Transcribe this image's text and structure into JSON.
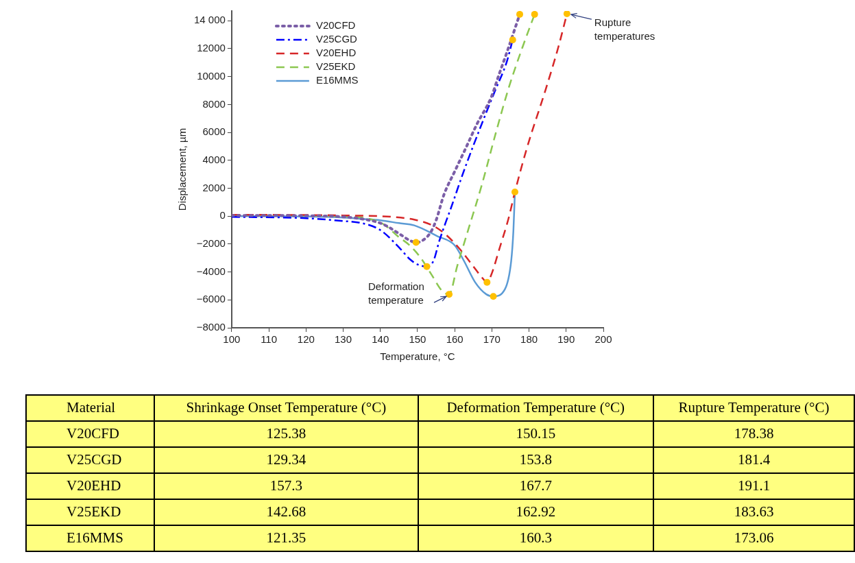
{
  "chart_data": [
    {
      "type": "line",
      "xlabel": "Temperature, °C",
      "ylabel": "Displacement, µm",
      "xlim": [
        100,
        200
      ],
      "xticks": [
        100,
        110,
        120,
        130,
        140,
        150,
        160,
        170,
        180,
        190,
        200
      ],
      "ylim": [
        -8000,
        14700
      ],
      "yticks": [
        {
          "value": -8000,
          "label": "−8000"
        },
        {
          "value": -6000,
          "label": "−6000"
        },
        {
          "value": -4000,
          "label": "−4000"
        },
        {
          "value": -2000,
          "label": "−2000"
        },
        0,
        2000,
        4000,
        6000,
        8000,
        10000,
        12000,
        {
          "value": 14000,
          "label": "14 000"
        }
      ],
      "grid": false,
      "legend": "top left",
      "marker": "none",
      "series": [
        {
          "name": "V20CFD",
          "color": "#7b5ea7",
          "line_style": "dotted",
          "x": [
            100,
            120,
            130,
            135,
            140,
            142,
            145,
            148,
            149.6,
            151,
            153.5,
            155,
            157.1,
            160,
            163.1,
            166,
            169.8,
            172,
            174,
            177.5
          ],
          "values": [
            50,
            30,
            -50,
            -200,
            -500,
            -750,
            -1250,
            -1750,
            -1880,
            -1800,
            -1170,
            -300,
            1530,
            3200,
            4940,
            6600,
            8500,
            10200,
            11700,
            14460
          ]
        },
        {
          "name": "V25CGD",
          "color": "#0000ff",
          "line_style": "dashdot",
          "x": [
            100,
            120,
            130,
            135,
            140,
            145,
            148,
            150,
            152.5,
            154.3,
            155.8,
            157.3,
            158.9,
            162.5,
            167.3,
            170.9,
            174,
            175.6
          ],
          "values": [
            -50,
            -150,
            -350,
            -500,
            -1000,
            -2230,
            -3100,
            -3460,
            -3610,
            -3200,
            -1830,
            -660,
            510,
            3260,
            6620,
            9010,
            11050,
            12630
          ]
        },
        {
          "name": "V20EHD",
          "color": "#d62728",
          "line_style": "dashed",
          "x": [
            100,
            130,
            143,
            149.1,
            154,
            157.6,
            161.3,
            164.9,
            167.3,
            168.7,
            169.8,
            172.2,
            174.5,
            176.2,
            179.5,
            184.4,
            188,
            190.2
          ],
          "values": [
            100,
            50,
            -50,
            -250,
            -660,
            -1320,
            -2340,
            -3560,
            -4380,
            -4740,
            -4230,
            -2190,
            -150,
            1730,
            4940,
            9010,
            12220,
            14500
          ]
        },
        {
          "name": "V25EKD",
          "color": "#8cc751",
          "line_style": "dashed",
          "x": [
            100,
            130,
            135,
            140,
            141.7,
            144.7,
            147.7,
            150.7,
            153.7,
            156.7,
            158.5,
            160.7,
            163.6,
            167.3,
            170.9,
            174.5,
            178.2,
            181.5
          ],
          "values": [
            80,
            -20,
            -100,
            -450,
            -740,
            -1440,
            -2050,
            -2930,
            -4160,
            -5390,
            -5600,
            -3560,
            -1020,
            2240,
            5800,
            9160,
            12070,
            14460
          ]
        },
        {
          "name": "E16MMS",
          "color": "#5b9bd5",
          "line_style": "solid",
          "x": [
            100,
            120,
            130,
            135,
            140,
            145,
            149.1,
            155.3,
            160,
            162.5,
            165.5,
            168.5,
            170.4,
            173.5,
            175.2,
            175.8,
            176.2
          ],
          "values": [
            0,
            -30,
            -100,
            -200,
            -300,
            -500,
            -660,
            -1430,
            -2090,
            -3210,
            -4740,
            -5600,
            -5750,
            -5240,
            -3210,
            -1020,
            1730
          ]
        },
        {
          "type": "scatter",
          "color": "#ffc000",
          "marker": "circle",
          "x": [
            149.6,
            152.5,
            158.5,
            168.7,
            170.4,
            177.5,
            175.6,
            181.5,
            190.2,
            176.2
          ],
          "values": [
            -1880,
            -3610,
            -5600,
            -4740,
            -5750,
            14460,
            12630,
            14460,
            14500,
            1730
          ]
        }
      ],
      "annotations": [
        {
          "text": "Deformation temperature",
          "x": 158.5,
          "y": -5600
        },
        {
          "text": "Rupture temperatures",
          "x": 190.2,
          "y": 14500
        }
      ]
    },
    {
      "type": "other",
      "categories": [
        "Material",
        "Shrinkage Onset Temperature (°C)",
        "Deformation Temperature (°C)",
        "Rupture Temperature (°C)"
      ],
      "annotations": [
        "V20CFD",
        "125.38",
        "150.15",
        "178.38",
        "V25CGD",
        "129.34",
        "153.8",
        "181.4",
        "V20EHD",
        "157.3",
        "167.7",
        "191.1",
        "V25EKD",
        "142.68",
        "162.92",
        "183.63",
        "E16MMS",
        "121.35",
        "160.3",
        "173.06"
      ]
    }
  ]
}
